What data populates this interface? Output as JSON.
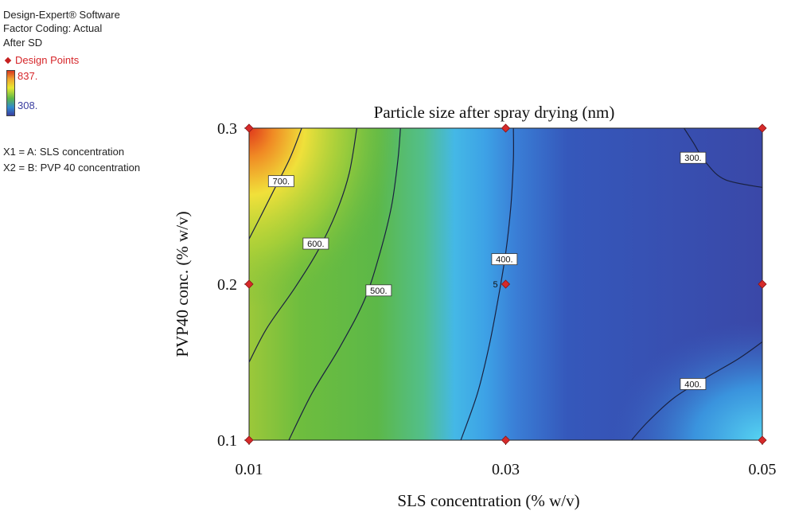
{
  "header": {
    "software": "Design-Expert® Software",
    "coding": "Factor Coding: Actual",
    "response": "After SD",
    "design_points_label": "Design Points",
    "colorbar_max": "837.",
    "colorbar_min": "308.",
    "factor_x1": "X1 = A: SLS concentration",
    "factor_x2": "X2 = B: PVP 40 concentration"
  },
  "colors": {
    "design_point": "#d62a2a",
    "high": "#d8361e",
    "low": "#3a3ea0"
  },
  "chart_data": {
    "type": "heatmap",
    "subtype": "contour",
    "title": "Particle size after spray drying (nm)",
    "xlabel": "SLS concentration  (% w/v)",
    "ylabel": "PVP40 conc. (% w/v)",
    "xlim": [
      0.01,
      0.05
    ],
    "ylim": [
      0.1,
      0.3
    ],
    "xticks": [
      "0.01",
      "0.03",
      "0.05"
    ],
    "yticks": [
      "0.1",
      "0.2",
      "0.3"
    ],
    "color_range": [
      308,
      837
    ],
    "contour_labels": [
      {
        "text": "700.",
        "x": 0.0125,
        "y": 0.266
      },
      {
        "text": "600.",
        "x": 0.0152,
        "y": 0.226
      },
      {
        "text": "500.",
        "x": 0.0201,
        "y": 0.196
      },
      {
        "text": "400.",
        "x": 0.0299,
        "y": 0.216
      },
      {
        "text": "300.",
        "x": 0.0446,
        "y": 0.281
      },
      {
        "text": "400.",
        "x": 0.0446,
        "y": 0.136
      }
    ],
    "center_point_label": {
      "text": "5",
      "x": 0.0292,
      "y": 0.2
    },
    "contours": [
      {
        "level": 700,
        "points": [
          [
            0.01,
            0.229
          ],
          [
            0.011,
            0.245
          ],
          [
            0.0121,
            0.263
          ],
          [
            0.0132,
            0.281
          ],
          [
            0.0141,
            0.3
          ]
        ]
      },
      {
        "level": 600,
        "points": [
          [
            0.01,
            0.15
          ],
          [
            0.0114,
            0.172
          ],
          [
            0.0136,
            0.198
          ],
          [
            0.0154,
            0.222
          ],
          [
            0.0168,
            0.246
          ],
          [
            0.0178,
            0.271
          ],
          [
            0.0184,
            0.3
          ]
        ]
      },
      {
        "level": 500,
        "points": [
          [
            0.0131,
            0.1
          ],
          [
            0.0149,
            0.13
          ],
          [
            0.0171,
            0.16
          ],
          [
            0.019,
            0.19
          ],
          [
            0.0202,
            0.22
          ],
          [
            0.0211,
            0.25
          ],
          [
            0.0216,
            0.28
          ],
          [
            0.0218,
            0.3
          ]
        ]
      },
      {
        "level": 400,
        "points": [
          [
            0.0265,
            0.1
          ],
          [
            0.0278,
            0.13
          ],
          [
            0.0287,
            0.16
          ],
          [
            0.0294,
            0.19
          ],
          [
            0.03,
            0.22
          ],
          [
            0.0304,
            0.25
          ],
          [
            0.0306,
            0.28
          ],
          [
            0.0306,
            0.3
          ]
        ]
      },
      {
        "level": 300,
        "points": [
          [
            0.0439,
            0.3
          ],
          [
            0.0446,
            0.291
          ],
          [
            0.0456,
            0.278
          ],
          [
            0.0471,
            0.267
          ],
          [
            0.05,
            0.262
          ]
        ]
      },
      {
        "level": 400,
        "points": [
          [
            0.0398,
            0.1
          ],
          [
            0.0411,
            0.112
          ],
          [
            0.0431,
            0.127
          ],
          [
            0.0456,
            0.14
          ],
          [
            0.0481,
            0.152
          ],
          [
            0.05,
            0.163
          ]
        ]
      }
    ],
    "design_points": [
      {
        "x": 0.01,
        "y": 0.1
      },
      {
        "x": 0.01,
        "y": 0.2
      },
      {
        "x": 0.01,
        "y": 0.3
      },
      {
        "x": 0.03,
        "y": 0.1
      },
      {
        "x": 0.03,
        "y": 0.2
      },
      {
        "x": 0.03,
        "y": 0.3
      },
      {
        "x": 0.05,
        "y": 0.1
      },
      {
        "x": 0.05,
        "y": 0.2
      },
      {
        "x": 0.05,
        "y": 0.3
      }
    ]
  }
}
